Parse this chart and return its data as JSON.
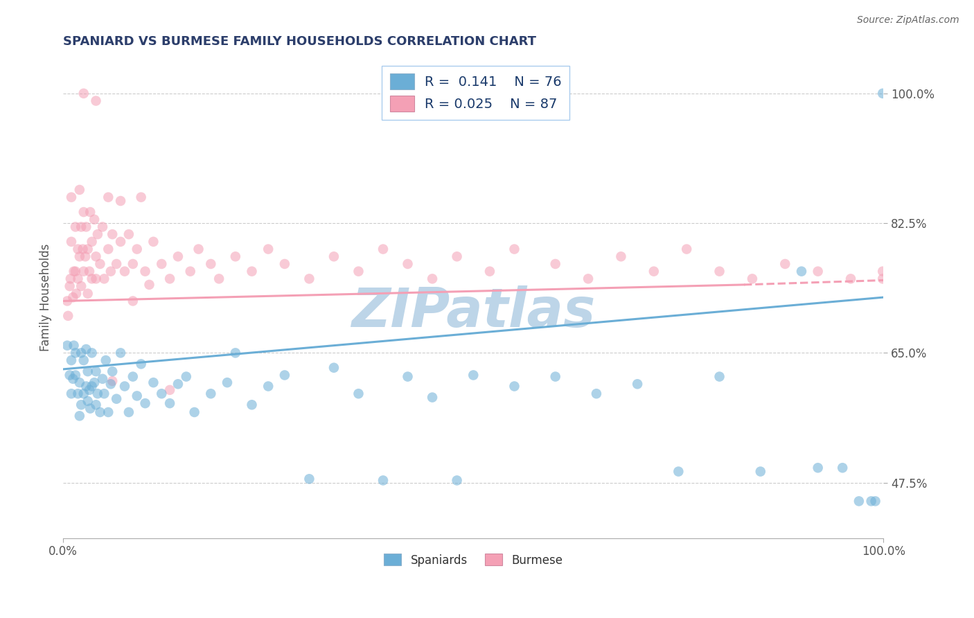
{
  "title": "SPANIARD VS BURMESE FAMILY HOUSEHOLDS CORRELATION CHART",
  "source_text": "Source: ZipAtlas.com",
  "ylabel": "Family Households",
  "xlim": [
    0.0,
    1.0
  ],
  "ylim": [
    0.4,
    1.05
  ],
  "xticklabels": [
    "0.0%",
    "100.0%"
  ],
  "ytick_positions": [
    0.475,
    0.65,
    0.825,
    1.0
  ],
  "ytick_labels": [
    "47.5%",
    "65.0%",
    "82.5%",
    "100.0%"
  ],
  "spaniard_color": "#6baed6",
  "burmese_color": "#f4a0b5",
  "spaniard_R": 0.141,
  "spaniard_N": 76,
  "burmese_R": 0.025,
  "burmese_N": 87,
  "watermark_text": "ZIPatlas",
  "watermark_color": "#bdd5e8",
  "sp_trend_x0": 0.0,
  "sp_trend_x1": 1.0,
  "sp_trend_y0": 0.628,
  "sp_trend_y1": 0.725,
  "bu_trend_x0": 0.0,
  "bu_trend_x1": 0.83,
  "bu_trend_x1_dash": 1.0,
  "bu_trend_y0": 0.72,
  "bu_trend_y1": 0.742,
  "bu_trend_y1_dash": 0.748,
  "spaniard_x": [
    0.005,
    0.008,
    0.01,
    0.01,
    0.012,
    0.013,
    0.015,
    0.015,
    0.018,
    0.02,
    0.02,
    0.022,
    0.022,
    0.025,
    0.025,
    0.028,
    0.028,
    0.03,
    0.03,
    0.032,
    0.033,
    0.035,
    0.035,
    0.038,
    0.04,
    0.04,
    0.042,
    0.045,
    0.048,
    0.05,
    0.052,
    0.055,
    0.058,
    0.06,
    0.065,
    0.07,
    0.075,
    0.08,
    0.085,
    0.09,
    0.095,
    0.1,
    0.11,
    0.12,
    0.13,
    0.14,
    0.15,
    0.16,
    0.18,
    0.2,
    0.21,
    0.23,
    0.25,
    0.27,
    0.3,
    0.33,
    0.36,
    0.39,
    0.42,
    0.45,
    0.48,
    0.5,
    0.55,
    0.6,
    0.65,
    0.7,
    0.75,
    0.8,
    0.85,
    0.9,
    0.92,
    0.95,
    0.97,
    0.985,
    0.99,
    0.999
  ],
  "spaniard_y": [
    0.66,
    0.62,
    0.595,
    0.64,
    0.615,
    0.66,
    0.62,
    0.65,
    0.595,
    0.565,
    0.61,
    0.58,
    0.65,
    0.595,
    0.64,
    0.605,
    0.655,
    0.585,
    0.625,
    0.6,
    0.575,
    0.605,
    0.65,
    0.61,
    0.58,
    0.625,
    0.595,
    0.57,
    0.615,
    0.595,
    0.64,
    0.57,
    0.608,
    0.625,
    0.588,
    0.65,
    0.605,
    0.57,
    0.618,
    0.592,
    0.635,
    0.582,
    0.61,
    0.595,
    0.582,
    0.608,
    0.618,
    0.57,
    0.595,
    0.61,
    0.65,
    0.58,
    0.605,
    0.62,
    0.48,
    0.63,
    0.595,
    0.478,
    0.618,
    0.59,
    0.478,
    0.62,
    0.605,
    0.618,
    0.595,
    0.608,
    0.49,
    0.618,
    0.49,
    0.76,
    0.495,
    0.495,
    0.45,
    0.45,
    0.45,
    1.0
  ],
  "burmese_x": [
    0.005,
    0.006,
    0.008,
    0.009,
    0.01,
    0.01,
    0.012,
    0.013,
    0.015,
    0.015,
    0.016,
    0.018,
    0.018,
    0.02,
    0.02,
    0.022,
    0.022,
    0.024,
    0.025,
    0.025,
    0.027,
    0.028,
    0.03,
    0.03,
    0.032,
    0.033,
    0.035,
    0.035,
    0.038,
    0.04,
    0.04,
    0.042,
    0.045,
    0.048,
    0.05,
    0.055,
    0.058,
    0.06,
    0.065,
    0.07,
    0.075,
    0.08,
    0.085,
    0.09,
    0.1,
    0.11,
    0.12,
    0.13,
    0.14,
    0.155,
    0.165,
    0.18,
    0.19,
    0.21,
    0.23,
    0.25,
    0.27,
    0.3,
    0.33,
    0.36,
    0.39,
    0.42,
    0.45,
    0.48,
    0.52,
    0.55,
    0.6,
    0.64,
    0.68,
    0.72,
    0.76,
    0.8,
    0.84,
    0.88,
    0.92,
    0.96,
    0.999,
    0.999,
    0.13,
    0.06,
    0.025,
    0.04,
    0.055,
    0.07,
    0.085,
    0.095,
    0.105
  ],
  "burmese_y": [
    0.72,
    0.7,
    0.74,
    0.75,
    0.8,
    0.86,
    0.725,
    0.76,
    0.82,
    0.76,
    0.73,
    0.79,
    0.75,
    0.87,
    0.78,
    0.74,
    0.82,
    0.79,
    0.76,
    0.84,
    0.78,
    0.82,
    0.73,
    0.79,
    0.76,
    0.84,
    0.8,
    0.75,
    0.83,
    0.78,
    0.75,
    0.81,
    0.77,
    0.82,
    0.75,
    0.79,
    0.76,
    0.81,
    0.77,
    0.8,
    0.76,
    0.81,
    0.77,
    0.79,
    0.76,
    0.8,
    0.77,
    0.75,
    0.78,
    0.76,
    0.79,
    0.77,
    0.75,
    0.78,
    0.76,
    0.79,
    0.77,
    0.75,
    0.78,
    0.76,
    0.79,
    0.77,
    0.75,
    0.78,
    0.76,
    0.79,
    0.77,
    0.75,
    0.78,
    0.76,
    0.79,
    0.76,
    0.75,
    0.77,
    0.76,
    0.75,
    0.76,
    0.75,
    0.6,
    0.612,
    1.0,
    0.99,
    0.86,
    0.855,
    0.72,
    0.86,
    0.742
  ]
}
